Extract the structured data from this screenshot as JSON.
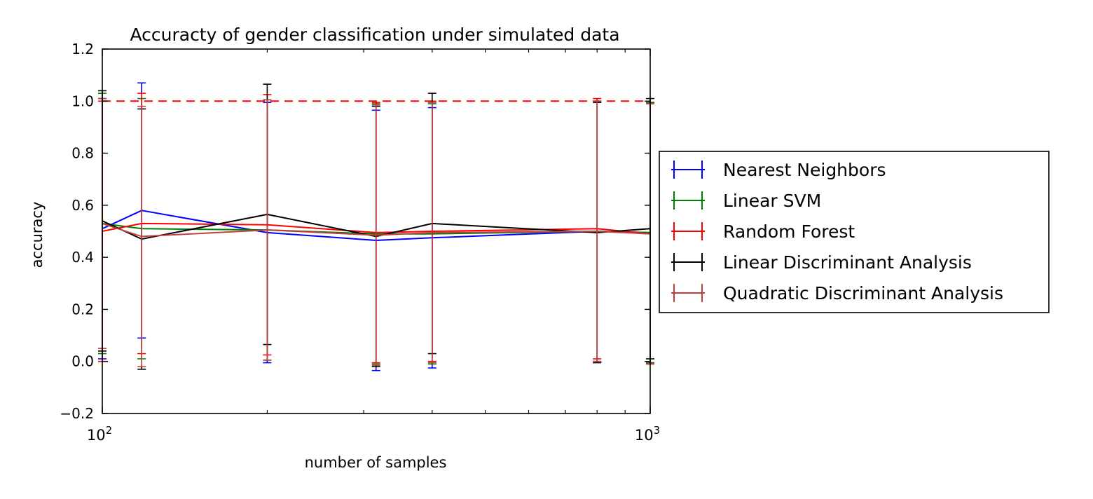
{
  "chart_data": {
    "type": "line",
    "title": "Accuracty of gender classification under simulated data",
    "xlabel": "number of samples",
    "ylabel": "accuracy",
    "xscale": "log",
    "xlim": [
      100,
      1000
    ],
    "ylim": [
      -0.2,
      1.2
    ],
    "x_ticks": [
      {
        "value": 100,
        "base": "10",
        "exp": "2"
      },
      {
        "value": 1000,
        "base": "10",
        "exp": "3"
      }
    ],
    "y_ticks": [
      {
        "value": -0.2,
        "label": "−0.2"
      },
      {
        "value": 0.0,
        "label": "0.0"
      },
      {
        "value": 0.2,
        "label": "0.2"
      },
      {
        "value": 0.4,
        "label": "0.4"
      },
      {
        "value": 0.6,
        "label": "0.6"
      },
      {
        "value": 0.8,
        "label": "0.8"
      },
      {
        "value": 1.0,
        "label": "1.0"
      },
      {
        "value": 1.2,
        "label": "1.2"
      }
    ],
    "reference_line": {
      "y": 1.0,
      "color": "#ff0000",
      "style": "dashed"
    },
    "grid": false,
    "legend_position": "right-outside",
    "x": [
      100,
      118,
      200,
      316,
      400,
      800,
      1000
    ],
    "series": [
      {
        "name": "Nearest Neighbors",
        "color": "#0000ff",
        "values": [
          0.51,
          0.58,
          0.495,
          0.465,
          0.475,
          0.5,
          0.495
        ],
        "err": [
          0.5,
          0.49,
          0.5,
          0.5,
          0.5,
          0.5,
          0.5
        ]
      },
      {
        "name": "Linear SVM",
        "color": "#008000",
        "values": [
          0.53,
          0.51,
          0.505,
          0.49,
          0.49,
          0.5,
          0.495
        ],
        "err": [
          0.5,
          0.5,
          0.5,
          0.5,
          0.5,
          0.5,
          0.5
        ]
      },
      {
        "name": "Random Forest",
        "color": "#ff0000",
        "values": [
          0.5,
          0.53,
          0.525,
          0.495,
          0.5,
          0.51,
          0.49
        ],
        "err": [
          0.5,
          0.5,
          0.5,
          0.5,
          0.5,
          0.5,
          0.5
        ]
      },
      {
        "name": "Linear Discriminant Analysis",
        "color": "#000000",
        "values": [
          0.54,
          0.47,
          0.565,
          0.48,
          0.53,
          0.495,
          0.51
        ],
        "err": [
          0.5,
          0.5,
          0.5,
          0.5,
          0.5,
          0.5,
          0.5
        ]
      },
      {
        "name": "Quadratic Discriminant Analysis",
        "color": "#c04040",
        "values": [
          0.53,
          0.48,
          0.505,
          0.485,
          0.495,
          0.5,
          0.49
        ],
        "err": [
          0.48,
          0.5,
          0.5,
          0.5,
          0.5,
          0.5,
          0.5
        ]
      }
    ]
  }
}
